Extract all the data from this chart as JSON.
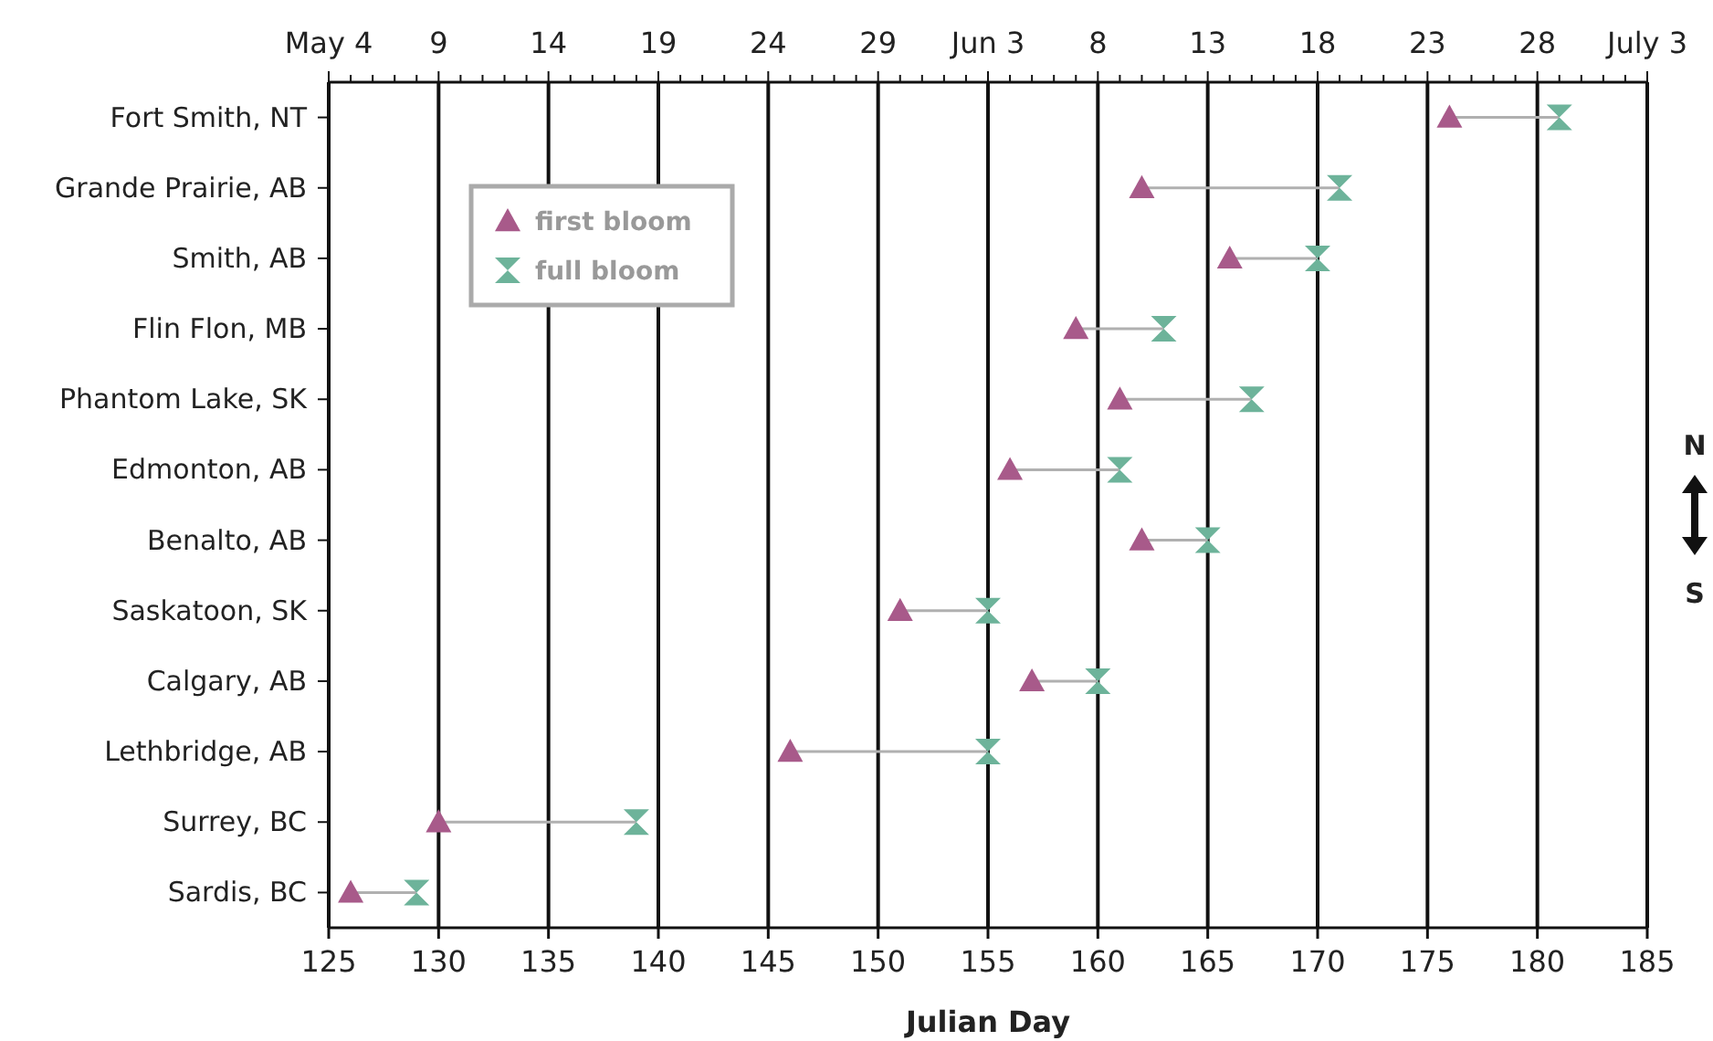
{
  "chart_data": {
    "type": "scatter",
    "orientation": "horizontal",
    "xlabel": "Julian Day",
    "categories": [
      "Fort Smith, NT",
      "Grande Prairie, AB",
      "Smith, AB",
      "Flin Flon, MB",
      "Phantom Lake, SK",
      "Edmonton, AB",
      "Benalto, AB",
      "Saskatoon, SK",
      "Calgary, AB",
      "Lethbridge, AB",
      "Surrey, BC",
      "Sardis, BC"
    ],
    "series": [
      {
        "name": "first bloom",
        "color": "#a85a8a",
        "marker": "triangle",
        "values": [
          176,
          162,
          166,
          159,
          161,
          156,
          162,
          151,
          157,
          146,
          130,
          126
        ]
      },
      {
        "name": "full bloom",
        "color": "#6db39a",
        "values": [
          181,
          171,
          170,
          163,
          167,
          161,
          165,
          155,
          160,
          155,
          139,
          129
        ]
      }
    ],
    "xlim": [
      125,
      185
    ],
    "xticks": [
      125,
      130,
      135,
      140,
      145,
      150,
      155,
      160,
      165,
      170,
      175,
      180,
      185
    ],
    "x2lim": [
      "--05-04",
      "--07-03"
    ],
    "x2ticks": [
      {
        "value": "--05-04",
        "label": "May 4"
      },
      {
        "value": "--05-05",
        "label": null
      },
      {
        "value": "--05-06",
        "label": null
      },
      {
        "value": "--05-07",
        "label": null
      },
      {
        "value": "--05-08",
        "label": null
      },
      {
        "value": "--05-09",
        "label": "9"
      },
      {
        "value": "--05-10",
        "label": null
      },
      {
        "value": "--05-11",
        "label": null
      },
      {
        "value": "--05-12",
        "label": null
      },
      {
        "value": "--05-13",
        "label": null
      },
      {
        "value": "--05-14",
        "label": "14"
      },
      {
        "value": "--05-15",
        "label": null
      },
      {
        "value": "--05-16",
        "label": null
      },
      {
        "value": "--05-17",
        "label": null
      },
      {
        "value": "--05-18",
        "label": null
      },
      {
        "value": "--05-19",
        "label": "19"
      },
      {
        "value": "--05-20",
        "label": null
      },
      {
        "value": "--05-21",
        "label": null
      },
      {
        "value": "--05-22",
        "label": null
      },
      {
        "value": "--05-23",
        "label": null
      },
      {
        "value": "--05-24",
        "label": "24"
      },
      {
        "value": "--05-25",
        "label": null
      },
      {
        "value": "--05-26",
        "label": null
      },
      {
        "value": "--05-27",
        "label": null
      },
      {
        "value": "--05-28",
        "label": null
      },
      {
        "value": "--05-29",
        "label": "29"
      },
      {
        "value": "--05-30",
        "label": null
      },
      {
        "value": "--05-31",
        "label": null
      },
      {
        "value": "--06-01",
        "label": null
      },
      {
        "value": "--06-02",
        "label": null
      },
      {
        "value": "--06-03",
        "label": "Jun 3"
      },
      {
        "value": "--06-04",
        "label": null
      },
      {
        "value": "--06-05",
        "label": null
      },
      {
        "value": "--06-06",
        "label": null
      },
      {
        "value": "--06-07",
        "label": null
      },
      {
        "value": "--06-08",
        "label": "8"
      },
      {
        "value": "--06-09",
        "label": null
      },
      {
        "value": "--06-10",
        "label": null
      },
      {
        "value": "--06-11",
        "label": null
      },
      {
        "value": "--06-12",
        "label": null
      },
      {
        "value": "--06-13",
        "label": "13"
      },
      {
        "value": "--06-14",
        "label": null
      },
      {
        "value": "--06-15",
        "label": null
      },
      {
        "value": "--06-16",
        "label": null
      },
      {
        "value": "--06-17",
        "label": null
      },
      {
        "value": "--06-18",
        "label": "18"
      },
      {
        "value": "--06-19",
        "label": null
      },
      {
        "value": "--06-20",
        "label": null
      },
      {
        "value": "--06-21",
        "label": null
      },
      {
        "value": "--06-22",
        "label": null
      },
      {
        "value": "--06-23",
        "label": "23"
      },
      {
        "value": "--06-24",
        "label": null
      },
      {
        "value": "--06-25",
        "label": null
      },
      {
        "value": "--06-26",
        "label": null
      },
      {
        "value": "--06-27",
        "label": null
      },
      {
        "value": "--06-28",
        "label": "28"
      },
      {
        "value": "--06-29",
        "label": null
      },
      {
        "value": "--06-30",
        "label": null
      },
      {
        "value": "--07-01",
        "label": null
      },
      {
        "value": "--07-02",
        "label": null
      },
      {
        "value": "--07-03",
        "label": "July 3"
      }
    ],
    "grid": "x",
    "legend": "top left",
    "annotations": [
      "N",
      "S"
    ]
  }
}
